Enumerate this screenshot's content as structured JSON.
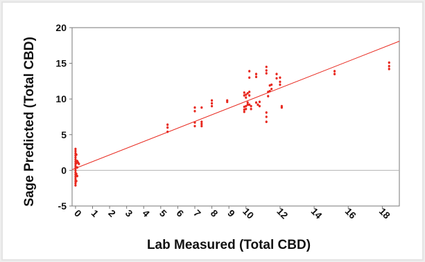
{
  "chart_data": {
    "type": "scatter",
    "xlabel": "Lab Measured (Total CBD)",
    "ylabel": "Sage Predicted (Total CBD)",
    "xlim": [
      -0.2,
      19
    ],
    "ylim": [
      -5,
      20
    ],
    "xticks": [
      0,
      1,
      2,
      3,
      4,
      5,
      6,
      7,
      8,
      9,
      10,
      12,
      14,
      16,
      18
    ],
    "yticks": [
      -5,
      0,
      5,
      10,
      15,
      20
    ],
    "grid": false,
    "legend": "none",
    "colors": {
      "points": "#e8281e",
      "fit_line": "#e8281e",
      "zero_line": "#b3b3b3",
      "frame": "#777777"
    },
    "fit_line": {
      "x": [
        -0.2,
        19
      ],
      "y": [
        0.1,
        18.1
      ]
    },
    "zero_line": {
      "y": 0
    },
    "points": [
      [
        0,
        3.0
      ],
      [
        0,
        2.7
      ],
      [
        0,
        2.4
      ],
      [
        0,
        2.1
      ],
      [
        0,
        1.8
      ],
      [
        0,
        1.5
      ],
      [
        0,
        1.2
      ],
      [
        0,
        0.9
      ],
      [
        0,
        0.6
      ],
      [
        0,
        0.3
      ],
      [
        0,
        0.0
      ],
      [
        0,
        -0.3
      ],
      [
        0,
        -0.6
      ],
      [
        0,
        -0.9
      ],
      [
        0,
        -1.2
      ],
      [
        0,
        -1.5
      ],
      [
        0,
        -1.8
      ],
      [
        0,
        -2.1
      ],
      [
        0.05,
        2.2
      ],
      [
        0.05,
        1.0
      ],
      [
        0.05,
        -0.5
      ],
      [
        0.05,
        -1.5
      ],
      [
        0.1,
        1.3
      ],
      [
        0.1,
        0.4
      ],
      [
        0.1,
        -0.8
      ],
      [
        0.15,
        1.1
      ],
      [
        0.2,
        0.9
      ],
      [
        5.4,
        6.4
      ],
      [
        5.4,
        6.0
      ],
      [
        5.4,
        5.4
      ],
      [
        7.0,
        8.8
      ],
      [
        7.0,
        8.3
      ],
      [
        7.0,
        6.7
      ],
      [
        7.0,
        6.2
      ],
      [
        7.4,
        8.8
      ],
      [
        7.4,
        6.8
      ],
      [
        7.4,
        6.5
      ],
      [
        7.4,
        6.2
      ],
      [
        8.0,
        9.8
      ],
      [
        8.0,
        9.4
      ],
      [
        8.0,
        9.0
      ],
      [
        8.9,
        9.8
      ],
      [
        8.9,
        9.6
      ],
      [
        9.9,
        10.9
      ],
      [
        9.9,
        10.5
      ],
      [
        9.9,
        8.9
      ],
      [
        9.9,
        8.5
      ],
      [
        9.9,
        8.2
      ],
      [
        10.0,
        10.6
      ],
      [
        10.0,
        10.2
      ],
      [
        10.0,
        9.0
      ],
      [
        10.0,
        8.6
      ],
      [
        10.1,
        10.8
      ],
      [
        10.1,
        9.5
      ],
      [
        10.1,
        9.2
      ],
      [
        10.2,
        13.9
      ],
      [
        10.2,
        13.0
      ],
      [
        10.2,
        11.0
      ],
      [
        10.2,
        10.5
      ],
      [
        10.2,
        9.2
      ],
      [
        10.3,
        9.0
      ],
      [
        10.3,
        8.6
      ],
      [
        10.6,
        13.5
      ],
      [
        10.6,
        13.1
      ],
      [
        10.6,
        9.5
      ],
      [
        10.7,
        9.2
      ],
      [
        10.8,
        9.6
      ],
      [
        10.8,
        9.0
      ],
      [
        11.2,
        14.5
      ],
      [
        11.2,
        14.0
      ],
      [
        11.2,
        13.6
      ],
      [
        11.2,
        8.1
      ],
      [
        11.2,
        7.5
      ],
      [
        11.2,
        6.8
      ],
      [
        11.3,
        11.0
      ],
      [
        11.3,
        10.4
      ],
      [
        11.4,
        11.9
      ],
      [
        11.4,
        11.1
      ],
      [
        11.5,
        12.0
      ],
      [
        11.5,
        11.4
      ],
      [
        11.8,
        13.5
      ],
      [
        11.8,
        12.9
      ],
      [
        12.0,
        13.0
      ],
      [
        12.0,
        12.4
      ],
      [
        12.0,
        12.0
      ],
      [
        12.1,
        9.0
      ],
      [
        12.1,
        8.8
      ],
      [
        15.2,
        13.9
      ],
      [
        15.2,
        13.5
      ],
      [
        18.4,
        15.1
      ],
      [
        18.4,
        14.6
      ],
      [
        18.4,
        14.2
      ]
    ]
  }
}
